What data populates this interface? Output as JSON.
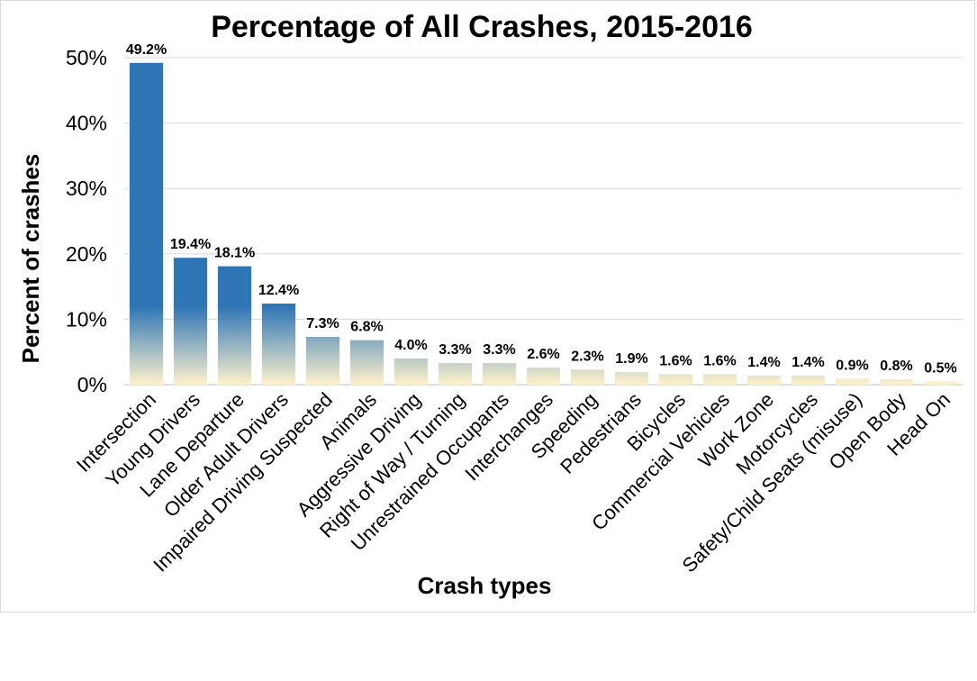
{
  "chart_data": {
    "type": "bar",
    "title": "Percentage of All Crashes, 2015-2016",
    "xlabel": "Crash types",
    "ylabel": "Percent of crashes",
    "ylim": [
      0,
      50
    ],
    "yticks": [
      0,
      10,
      20,
      30,
      40,
      50
    ],
    "ytick_labels": [
      "0%",
      "10%",
      "20%",
      "30%",
      "40%",
      "50%"
    ],
    "grid": true,
    "legend": "none",
    "bar_color": "#2e75b6",
    "bar_fade_color": "#fff2cc",
    "categories": [
      "Intersection",
      "Young Drivers",
      "Lane Departure",
      "Older Adult Drivers",
      "Impaired Driving Suspected",
      "Animals",
      "Aggressive Driving",
      "Right of Way / Turning",
      "Unrestrained Occupants",
      "Interchanges",
      "Speeding",
      "Pedestrians",
      "Bicycles",
      "Commercial Vehicles",
      "Work Zone",
      "Motorcycles",
      "Safety/Child Seats (misuse)",
      "Open Body",
      "Head On"
    ],
    "values": [
      49.2,
      19.4,
      18.1,
      12.4,
      7.3,
      6.8,
      4.0,
      3.3,
      3.3,
      2.6,
      2.3,
      1.9,
      1.6,
      1.6,
      1.4,
      1.4,
      0.9,
      0.8,
      0.5
    ],
    "data_labels": [
      "49.2%",
      "19.4%",
      "18.1%",
      "12.4%",
      "7.3%",
      "6.8%",
      "4.0%",
      "3.3%",
      "3.3%",
      "2.6%",
      "2.3%",
      "1.9%",
      "1.6%",
      "1.6%",
      "1.4%",
      "1.4%",
      "0.9%",
      "0.8%",
      "0.5%"
    ]
  }
}
